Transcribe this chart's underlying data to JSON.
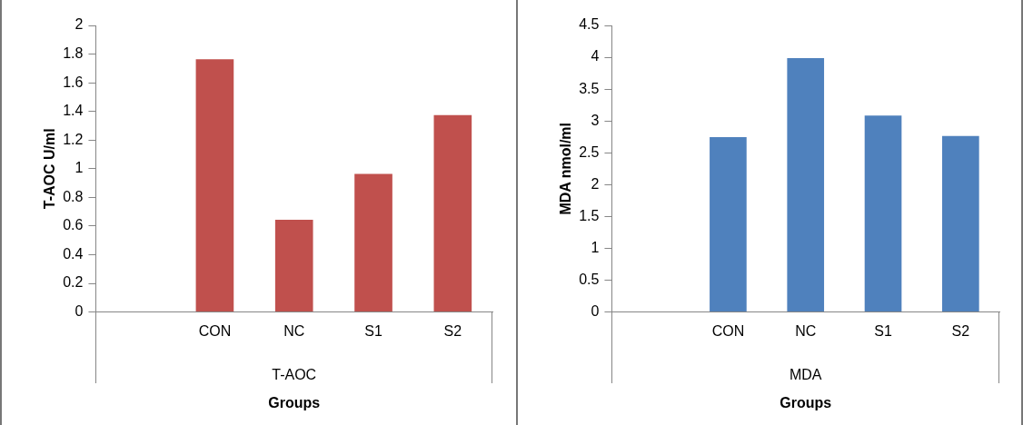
{
  "chart_data": [
    {
      "type": "bar",
      "categories": [
        null,
        "CON",
        "NC",
        "S1",
        "S2"
      ],
      "values": [
        null,
        1.77,
        0.65,
        0.97,
        1.38
      ],
      "color": "#c0504d",
      "ylabel": "T-AOC U/ml",
      "xlabel": "Groups",
      "annotations": [
        "T-AOC"
      ],
      "ylim": [
        0,
        2
      ],
      "yticks": [
        0,
        {
          "value": 0.2,
          "label": "0.2"
        },
        {
          "value": 0.4,
          "label": "0.4"
        },
        {
          "value": 0.6,
          "label": "0.6"
        },
        {
          "value": 0.8,
          "label": "0.8"
        },
        1,
        {
          "value": 1.2,
          "label": "1.2"
        },
        {
          "value": 1.4,
          "label": "1.4"
        },
        {
          "value": 1.6,
          "label": "1.6"
        },
        {
          "value": 1.8,
          "label": "1.8"
        },
        2
      ],
      "grid": false,
      "legend": false
    },
    {
      "type": "bar",
      "categories": [
        null,
        "CON",
        "NC",
        "S1",
        "S2"
      ],
      "values": [
        null,
        2.76,
        4.0,
        3.1,
        2.78
      ],
      "color": "#4f81bd",
      "ylabel": "MDA nmol/ml",
      "xlabel": "Groups",
      "annotations": [
        "MDA"
      ],
      "ylim": [
        0,
        4.5
      ],
      "yticks": [
        0,
        0.5,
        1,
        1.5,
        2,
        2.5,
        3,
        3.5,
        4,
        4.5
      ],
      "grid": false,
      "legend": false
    }
  ]
}
